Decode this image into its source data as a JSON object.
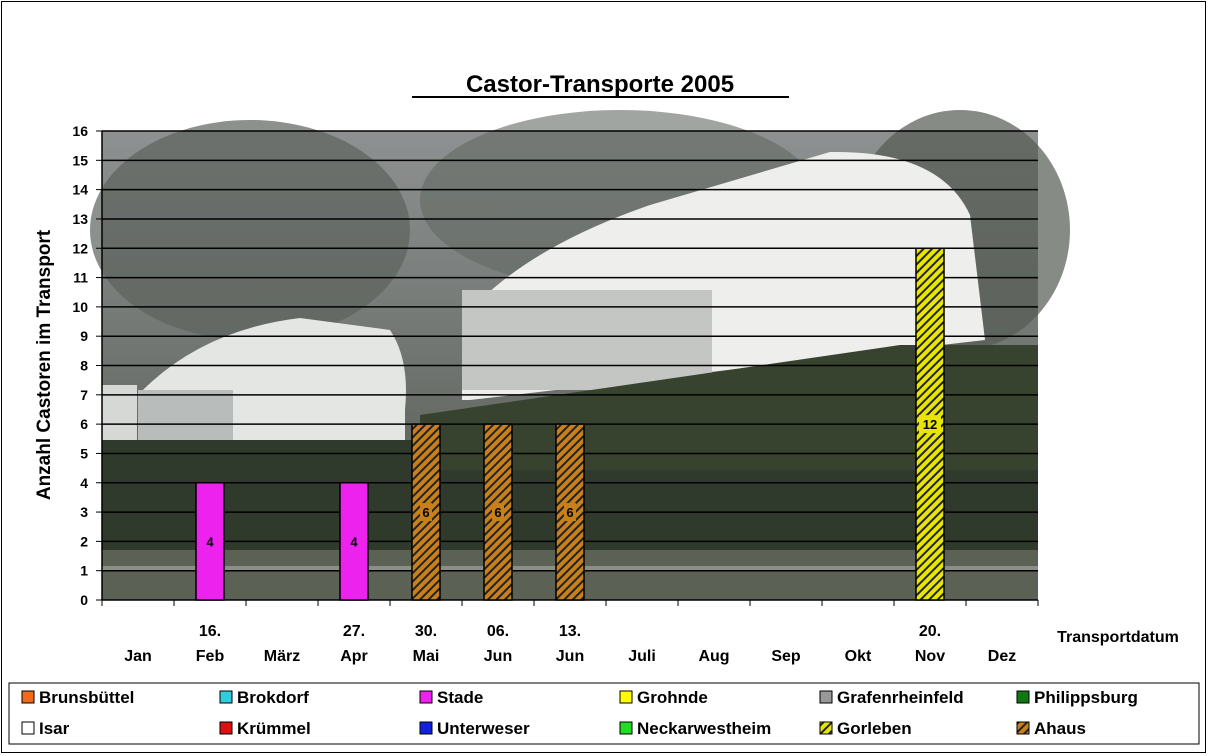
{
  "chart_data": {
    "type": "bar",
    "title": "Castor-Transporte 2005",
    "xlabel": "Transportdatum",
    "ylabel": "Anzahl Castoren im Transport",
    "ylim": [
      0,
      16
    ],
    "y_ticks": [
      "0",
      "1",
      "2",
      "3",
      "4",
      "5",
      "6",
      "7",
      "8",
      "9",
      "10",
      "11",
      "12",
      "13",
      "14",
      "15",
      "16"
    ],
    "grid": true,
    "background": "photo of Castor transport train wagons",
    "categories": [
      {
        "line1": "",
        "line2": "Jan"
      },
      {
        "line1": "16.",
        "line2": "Feb"
      },
      {
        "line1": "",
        "line2": "März"
      },
      {
        "line1": "27.",
        "line2": "Apr"
      },
      {
        "line1": "30.",
        "line2": "Mai"
      },
      {
        "line1": "06.",
        "line2": "Jun"
      },
      {
        "line1": "13.",
        "line2": "Jun"
      },
      {
        "line1": "",
        "line2": "Juli"
      },
      {
        "line1": "",
        "line2": "Aug"
      },
      {
        "line1": "",
        "line2": "Sep"
      },
      {
        "line1": "",
        "line2": "Okt"
      },
      {
        "line1": "20.",
        "line2": "Nov"
      },
      {
        "line1": "",
        "line2": "Dez"
      }
    ],
    "bars": [
      {
        "category_index": 1,
        "series": "Stade",
        "value": 4,
        "label": "4"
      },
      {
        "category_index": 3,
        "series": "Stade",
        "value": 4,
        "label": "4"
      },
      {
        "category_index": 4,
        "series": "Ahaus",
        "value": 6,
        "label": "6"
      },
      {
        "category_index": 5,
        "series": "Ahaus",
        "value": 6,
        "label": "6"
      },
      {
        "category_index": 6,
        "series": "Ahaus",
        "value": 6,
        "label": "6"
      },
      {
        "category_index": 11,
        "series": "Gorleben",
        "value": 12,
        "label": "12"
      }
    ],
    "legend": {
      "position": "bottom",
      "entries": [
        {
          "name": "Brunsbüttel",
          "color": "#f26b1d",
          "pattern": "solid"
        },
        {
          "name": "Brokdorf",
          "color": "#33ccdd",
          "pattern": "solid"
        },
        {
          "name": "Stade",
          "color": "#ee22ee",
          "pattern": "solid"
        },
        {
          "name": "Grohnde",
          "color": "#ffff00",
          "pattern": "solid"
        },
        {
          "name": "Grafenrheinfeld",
          "color": "#999999",
          "pattern": "solid"
        },
        {
          "name": "Philippsburg",
          "color": "#117711",
          "pattern": "solid"
        },
        {
          "name": "Isar",
          "color": "#ffffff",
          "pattern": "solid"
        },
        {
          "name": "Krümmel",
          "color": "#dd1111",
          "pattern": "solid"
        },
        {
          "name": "Unterweser",
          "color": "#1122dd",
          "pattern": "solid"
        },
        {
          "name": "Neckarwestheim",
          "color": "#22dd22",
          "pattern": "solid"
        },
        {
          "name": "Gorleben",
          "color": "#e8e600",
          "pattern": "hatch"
        },
        {
          "name": "Ahaus",
          "color": "#c8801a",
          "pattern": "hatch"
        }
      ]
    }
  }
}
